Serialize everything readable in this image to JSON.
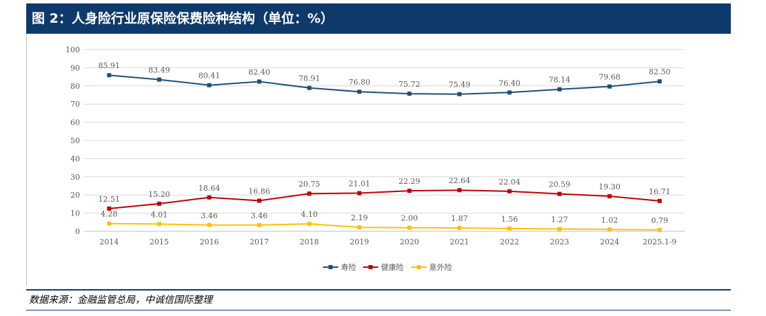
{
  "title": "图 2：人身险行业原保险保费险种结构（单位：%）",
  "source": "数据来源：金融监管总局，中诚信国际整理",
  "chart_data": {
    "type": "line",
    "categories": [
      "2014",
      "2015",
      "2016",
      "2017",
      "2018",
      "2019",
      "2020",
      "2021",
      "2022",
      "2023",
      "2024",
      "2025.1-9"
    ],
    "ylim": [
      0,
      100
    ],
    "yticks": [
      0,
      10,
      20,
      30,
      40,
      50,
      60,
      70,
      80,
      90,
      100
    ],
    "grid": true,
    "legend": "bottom-center",
    "series": [
      {
        "name": "寿险",
        "color": "#1f4e79",
        "values": [
          85.91,
          83.49,
          80.41,
          82.4,
          78.91,
          76.8,
          75.72,
          75.49,
          76.4,
          78.14,
          79.68,
          82.5
        ],
        "labels": [
          "85.91",
          "83.49",
          "80.41",
          "82.40",
          "78.91",
          "76.80",
          "75.72",
          "75.49",
          "76.40",
          "78.14",
          "79.68",
          "82.50"
        ]
      },
      {
        "name": "健康险",
        "color": "#c00000",
        "values": [
          12.51,
          15.2,
          18.64,
          16.86,
          20.75,
          21.01,
          22.29,
          22.64,
          22.04,
          20.59,
          19.3,
          16.71
        ],
        "labels": [
          "12.51",
          "15.20",
          "18.64",
          "16.86",
          "20.75",
          "21.01",
          "22.29",
          "22.64",
          "22.04",
          "20.59",
          "19.30",
          "16.71"
        ]
      },
      {
        "name": "意外险",
        "color": "#ffc000",
        "values": [
          4.28,
          4.01,
          3.46,
          3.46,
          4.1,
          2.19,
          2.0,
          1.87,
          1.56,
          1.27,
          1.02,
          0.79
        ],
        "labels": [
          "4.28",
          "4.01",
          "3.46",
          "3.46",
          "4.10",
          "2.19",
          "2.00",
          "1.87",
          "1.56",
          "1.27",
          "1.02",
          "0.79"
        ]
      }
    ]
  }
}
